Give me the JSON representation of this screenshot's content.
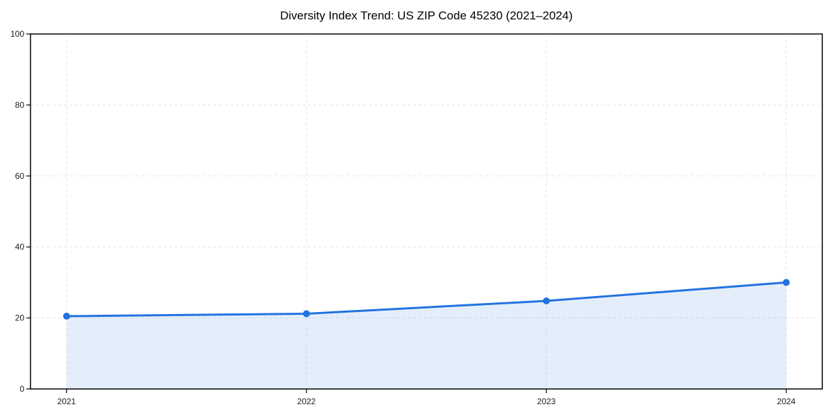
{
  "chart_data": {
    "type": "area",
    "title": "Diversity Index Trend: US ZIP Code 45230 (2021–2024)",
    "categories": [
      "2021",
      "2022",
      "2023",
      "2024"
    ],
    "series": [
      {
        "name": "Diversity Index",
        "values": [
          20.5,
          21.2,
          24.8,
          30.0
        ]
      }
    ],
    "xlabel": "",
    "ylabel": "",
    "ylim": [
      0,
      100
    ],
    "yticks": [
      0,
      20,
      40,
      60,
      80,
      100
    ],
    "grid": true,
    "grid_style": "dashed",
    "legend": false,
    "colors": {
      "line": "#2272e0",
      "marker": "#2272e0",
      "fill": "#2272e0",
      "fill_opacity": 0.12,
      "gridline": "#e3e3e3",
      "spine": "#000000",
      "tick_text": "#1a1a1a"
    }
  }
}
